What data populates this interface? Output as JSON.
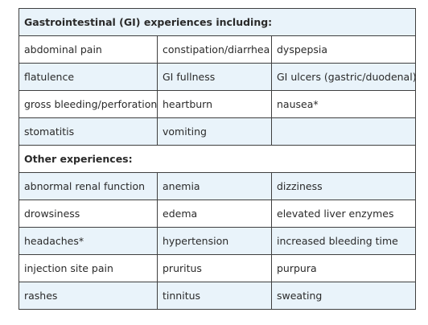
{
  "sections": [
    {
      "heading": "Gastrointestinal (GI) experiences including:",
      "rows": [
        [
          "abdominal pain",
          "constipation/diarrhea",
          "dyspepsia"
        ],
        [
          "flatulence",
          "GI fullness",
          "GI ulcers (gastric/duodenal)"
        ],
        [
          "gross bleeding/perforation",
          "heartburn",
          "nausea*"
        ],
        [
          "stomatitis",
          "vomiting",
          ""
        ]
      ]
    },
    {
      "heading": "Other experiences:",
      "rows": [
        [
          "abnormal renal function",
          "anemia",
          "dizziness"
        ],
        [
          "drowsiness",
          "edema",
          "elevated liver enzymes"
        ],
        [
          "headaches*",
          "hypertension",
          "increased bleeding time"
        ],
        [
          "injection site pain",
          "pruritus",
          "purpura"
        ],
        [
          "rashes",
          "tinnitus",
          "sweating"
        ]
      ]
    }
  ]
}
